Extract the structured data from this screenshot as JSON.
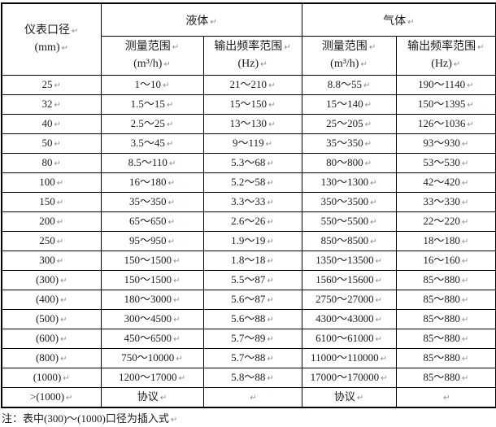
{
  "marks": {
    "cell_end": "↵"
  },
  "colors": {
    "border": "#000000",
    "text": "#1c1c1c",
    "mark": "#7e8ca3",
    "background": "#ffffff"
  },
  "table": {
    "diameter_header": {
      "line1": "仪表口径",
      "line2": "(mm)"
    },
    "groups": {
      "liquid": "液体",
      "gas": "气体"
    },
    "subheaders": {
      "liquid_range": {
        "line1": "测量范围",
        "line2": "(m³/h)"
      },
      "liquid_freq": {
        "line1": "输出频率范围",
        "line2": "(Hz)"
      },
      "gas_range": {
        "line1": "测量范围",
        "line2": "(m³/h)"
      },
      "gas_freq": {
        "line1": "输出频率范围",
        "line2": "(Hz)"
      }
    },
    "rows": [
      [
        "25",
        "1～10",
        "21～210",
        "8.8～55",
        "190～1140"
      ],
      [
        "32",
        "1.5～15",
        "15～150",
        "15～140",
        "150～1395"
      ],
      [
        "40",
        "2.5～25",
        "13～130",
        "25～205",
        "126～1036"
      ],
      [
        "50",
        "3.5～45",
        "9～119",
        "35～350",
        "93～930"
      ],
      [
        "80",
        "8.5～110",
        "5.3～68",
        "80～800",
        "53～530"
      ],
      [
        "100",
        "16～180",
        "5.2～58",
        "130～1300",
        "42～420"
      ],
      [
        "150",
        "35～350",
        "3.3～33",
        "350～3500",
        "33～330"
      ],
      [
        "200",
        "65～650",
        "2.6～26",
        "550～5500",
        "22～220"
      ],
      [
        "250",
        "95～950",
        "1.9～19",
        "850～8500",
        "18～180"
      ],
      [
        "300",
        "150～1500",
        "1.8～18",
        "1350～13500",
        "16～160"
      ],
      [
        "(300)",
        "150～1500",
        "5.5～87",
        "1560～15600",
        "85～880"
      ],
      [
        "(400)",
        "180～3000",
        "5.6～87",
        "2750～27000",
        "85～880"
      ],
      [
        "(500)",
        "300～4500",
        "5.6～88",
        "4300～43000",
        "85～880"
      ],
      [
        "(600)",
        "450～6500",
        "5.7～89",
        "6100～61000",
        "85～880"
      ],
      [
        "(800)",
        "750～10000",
        "5.7～88",
        "11000～110000",
        "85～880"
      ],
      [
        "(1000)",
        "1200～17000",
        "5.8～88",
        "17000～170000",
        "85～880"
      ],
      [
        ">(1000)",
        "协议",
        "",
        "协议",
        ""
      ]
    ]
  },
  "note": {
    "text": "注：表中(300)～(1000)口径为插入式"
  }
}
